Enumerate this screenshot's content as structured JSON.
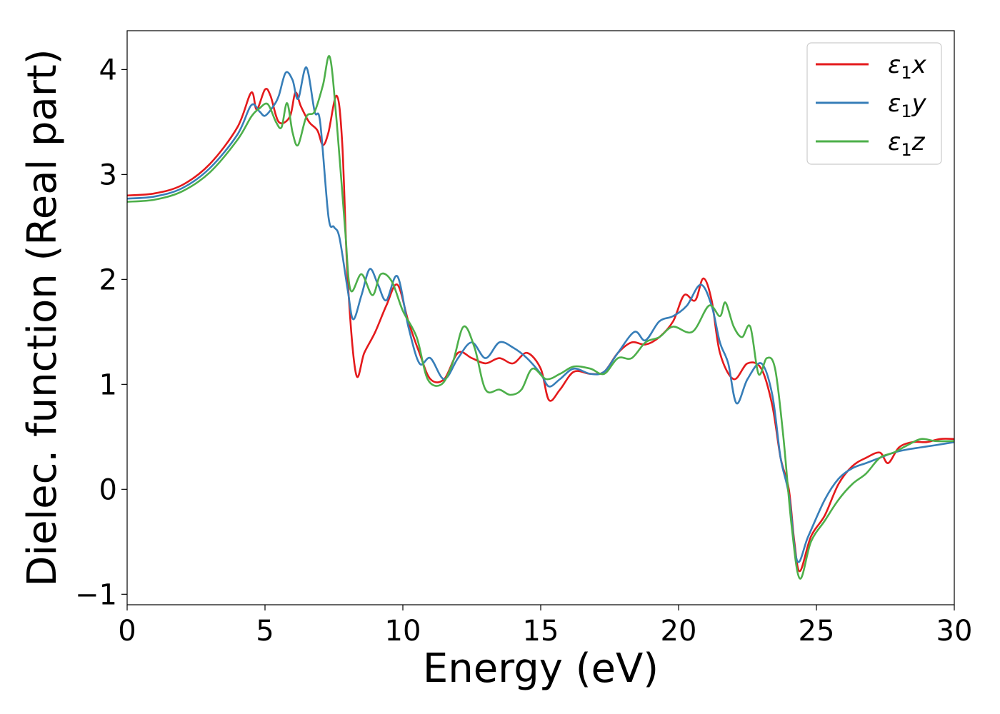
{
  "chart_data": {
    "type": "line",
    "xlabel": "Energy (eV)",
    "ylabel": "Dielec. function (Real part)",
    "xlim": [
      0,
      30
    ],
    "ylim": [
      -1.1,
      4.37
    ],
    "xticks": [
      0,
      5,
      10,
      15,
      20,
      25,
      30
    ],
    "yticks": [
      -1,
      0,
      1,
      2,
      3,
      4
    ],
    "xtick_labels": [
      "0",
      "5",
      "10",
      "15",
      "20",
      "25",
      "30"
    ],
    "ytick_labels": [
      "−1",
      "0",
      "1",
      "2",
      "3",
      "4"
    ],
    "grid": false,
    "legend_position": "top-right",
    "series": [
      {
        "name": "ε1x",
        "color": "#e41a1c",
        "points": [
          [
            0,
            2.8
          ],
          [
            1,
            2.82
          ],
          [
            2,
            2.9
          ],
          [
            3,
            3.1
          ],
          [
            4,
            3.45
          ],
          [
            4.5,
            3.78
          ],
          [
            4.7,
            3.62
          ],
          [
            5,
            3.81
          ],
          [
            5.2,
            3.75
          ],
          [
            5.5,
            3.5
          ],
          [
            5.9,
            3.55
          ],
          [
            6.1,
            3.78
          ],
          [
            6.3,
            3.65
          ],
          [
            6.6,
            3.5
          ],
          [
            6.9,
            3.42
          ],
          [
            7.1,
            3.28
          ],
          [
            7.3,
            3.4
          ],
          [
            7.6,
            3.75
          ],
          [
            7.8,
            3.3
          ],
          [
            8.0,
            2.0
          ],
          [
            8.3,
            1.1
          ],
          [
            8.6,
            1.3
          ],
          [
            9.0,
            1.5
          ],
          [
            9.4,
            1.75
          ],
          [
            9.8,
            1.95
          ],
          [
            10.2,
            1.6
          ],
          [
            10.6,
            1.3
          ],
          [
            11.0,
            1.05
          ],
          [
            11.5,
            1.05
          ],
          [
            12.0,
            1.3
          ],
          [
            12.5,
            1.25
          ],
          [
            13.0,
            1.2
          ],
          [
            13.5,
            1.25
          ],
          [
            14.0,
            1.2
          ],
          [
            14.5,
            1.3
          ],
          [
            15.0,
            1.15
          ],
          [
            15.3,
            0.85
          ],
          [
            15.7,
            0.95
          ],
          [
            16.2,
            1.12
          ],
          [
            16.8,
            1.1
          ],
          [
            17.3,
            1.12
          ],
          [
            17.8,
            1.3
          ],
          [
            18.3,
            1.4
          ],
          [
            18.8,
            1.38
          ],
          [
            19.3,
            1.45
          ],
          [
            19.8,
            1.6
          ],
          [
            20.2,
            1.85
          ],
          [
            20.6,
            1.8
          ],
          [
            20.9,
            2.01
          ],
          [
            21.2,
            1.8
          ],
          [
            21.5,
            1.3
          ],
          [
            22.0,
            1.05
          ],
          [
            22.5,
            1.2
          ],
          [
            23.0,
            1.15
          ],
          [
            23.4,
            0.8
          ],
          [
            23.7,
            0.3
          ],
          [
            24.0,
            0.0
          ],
          [
            24.2,
            -0.5
          ],
          [
            24.4,
            -0.78
          ],
          [
            24.8,
            -0.45
          ],
          [
            25.3,
            -0.25
          ],
          [
            25.8,
            0.05
          ],
          [
            26.3,
            0.22
          ],
          [
            26.8,
            0.3
          ],
          [
            27.3,
            0.35
          ],
          [
            27.6,
            0.25
          ],
          [
            28.0,
            0.4
          ],
          [
            28.5,
            0.45
          ],
          [
            29.0,
            0.45
          ],
          [
            29.5,
            0.48
          ],
          [
            30,
            0.48
          ]
        ]
      },
      {
        "name": "ε1y",
        "color": "#377eb8",
        "points": [
          [
            0,
            2.77
          ],
          [
            1,
            2.79
          ],
          [
            2,
            2.87
          ],
          [
            3,
            3.06
          ],
          [
            4,
            3.38
          ],
          [
            4.5,
            3.66
          ],
          [
            4.8,
            3.6
          ],
          [
            5.0,
            3.56
          ],
          [
            5.3,
            3.65
          ],
          [
            5.5,
            3.75
          ],
          [
            5.75,
            3.97
          ],
          [
            6.0,
            3.9
          ],
          [
            6.2,
            3.72
          ],
          [
            6.5,
            4.02
          ],
          [
            6.8,
            3.6
          ],
          [
            7.0,
            3.5
          ],
          [
            7.3,
            2.6
          ],
          [
            7.5,
            2.5
          ],
          [
            7.7,
            2.4
          ],
          [
            8.0,
            1.9
          ],
          [
            8.2,
            1.62
          ],
          [
            8.5,
            1.85
          ],
          [
            8.8,
            2.1
          ],
          [
            9.1,
            1.95
          ],
          [
            9.4,
            1.8
          ],
          [
            9.8,
            2.03
          ],
          [
            10.2,
            1.55
          ],
          [
            10.6,
            1.2
          ],
          [
            11.0,
            1.25
          ],
          [
            11.5,
            1.05
          ],
          [
            12.0,
            1.25
          ],
          [
            12.5,
            1.4
          ],
          [
            13.0,
            1.25
          ],
          [
            13.5,
            1.4
          ],
          [
            14.0,
            1.35
          ],
          [
            14.5,
            1.25
          ],
          [
            15.0,
            1.1
          ],
          [
            15.3,
            0.98
          ],
          [
            15.7,
            1.05
          ],
          [
            16.2,
            1.15
          ],
          [
            16.8,
            1.1
          ],
          [
            17.3,
            1.12
          ],
          [
            17.8,
            1.3
          ],
          [
            18.4,
            1.5
          ],
          [
            18.8,
            1.42
          ],
          [
            19.3,
            1.6
          ],
          [
            19.8,
            1.65
          ],
          [
            20.3,
            1.75
          ],
          [
            20.8,
            1.95
          ],
          [
            21.2,
            1.75
          ],
          [
            21.5,
            1.4
          ],
          [
            21.8,
            1.2
          ],
          [
            22.1,
            0.82
          ],
          [
            22.5,
            1.05
          ],
          [
            23.0,
            1.2
          ],
          [
            23.4,
            0.9
          ],
          [
            23.7,
            0.3
          ],
          [
            24.0,
            -0.05
          ],
          [
            24.3,
            -0.68
          ],
          [
            24.7,
            -0.45
          ],
          [
            25.3,
            -0.1
          ],
          [
            25.8,
            0.1
          ],
          [
            26.3,
            0.2
          ],
          [
            26.8,
            0.25
          ],
          [
            27.3,
            0.3
          ],
          [
            27.8,
            0.35
          ],
          [
            28.3,
            0.38
          ],
          [
            28.8,
            0.4
          ],
          [
            29.3,
            0.42
          ],
          [
            30,
            0.45
          ]
        ]
      },
      {
        "name": "ε1z",
        "color": "#4daf4a",
        "points": [
          [
            0,
            2.74
          ],
          [
            1,
            2.76
          ],
          [
            2,
            2.84
          ],
          [
            3,
            3.02
          ],
          [
            4,
            3.33
          ],
          [
            4.5,
            3.55
          ],
          [
            4.8,
            3.63
          ],
          [
            5.1,
            3.67
          ],
          [
            5.4,
            3.5
          ],
          [
            5.6,
            3.45
          ],
          [
            5.8,
            3.68
          ],
          [
            6.0,
            3.4
          ],
          [
            6.2,
            3.28
          ],
          [
            6.5,
            3.55
          ],
          [
            6.8,
            3.6
          ],
          [
            7.1,
            3.85
          ],
          [
            7.35,
            4.12
          ],
          [
            7.6,
            3.5
          ],
          [
            7.9,
            2.5
          ],
          [
            8.1,
            1.9
          ],
          [
            8.5,
            2.05
          ],
          [
            8.9,
            1.85
          ],
          [
            9.2,
            2.05
          ],
          [
            9.6,
            1.98
          ],
          [
            10.0,
            1.7
          ],
          [
            10.5,
            1.45
          ],
          [
            10.9,
            1.05
          ],
          [
            11.4,
            1.0
          ],
          [
            11.8,
            1.2
          ],
          [
            12.2,
            1.55
          ],
          [
            12.6,
            1.35
          ],
          [
            13.0,
            0.95
          ],
          [
            13.5,
            0.95
          ],
          [
            13.9,
            0.9
          ],
          [
            14.3,
            0.95
          ],
          [
            14.7,
            1.15
          ],
          [
            15.2,
            1.05
          ],
          [
            15.7,
            1.1
          ],
          [
            16.2,
            1.17
          ],
          [
            16.8,
            1.15
          ],
          [
            17.3,
            1.1
          ],
          [
            17.8,
            1.25
          ],
          [
            18.3,
            1.25
          ],
          [
            18.8,
            1.4
          ],
          [
            19.3,
            1.45
          ],
          [
            19.8,
            1.55
          ],
          [
            20.5,
            1.5
          ],
          [
            21.1,
            1.75
          ],
          [
            21.5,
            1.65
          ],
          [
            21.7,
            1.78
          ],
          [
            22.0,
            1.55
          ],
          [
            22.3,
            1.45
          ],
          [
            22.6,
            1.55
          ],
          [
            22.9,
            1.1
          ],
          [
            23.2,
            1.25
          ],
          [
            23.5,
            1.15
          ],
          [
            23.8,
            0.5
          ],
          [
            24.1,
            -0.35
          ],
          [
            24.4,
            -0.85
          ],
          [
            24.8,
            -0.5
          ],
          [
            25.3,
            -0.3
          ],
          [
            25.8,
            -0.1
          ],
          [
            26.3,
            0.05
          ],
          [
            26.8,
            0.15
          ],
          [
            27.3,
            0.3
          ],
          [
            27.8,
            0.35
          ],
          [
            28.3,
            0.42
          ],
          [
            28.8,
            0.48
          ],
          [
            29.3,
            0.46
          ],
          [
            30,
            0.46
          ]
        ]
      }
    ]
  }
}
